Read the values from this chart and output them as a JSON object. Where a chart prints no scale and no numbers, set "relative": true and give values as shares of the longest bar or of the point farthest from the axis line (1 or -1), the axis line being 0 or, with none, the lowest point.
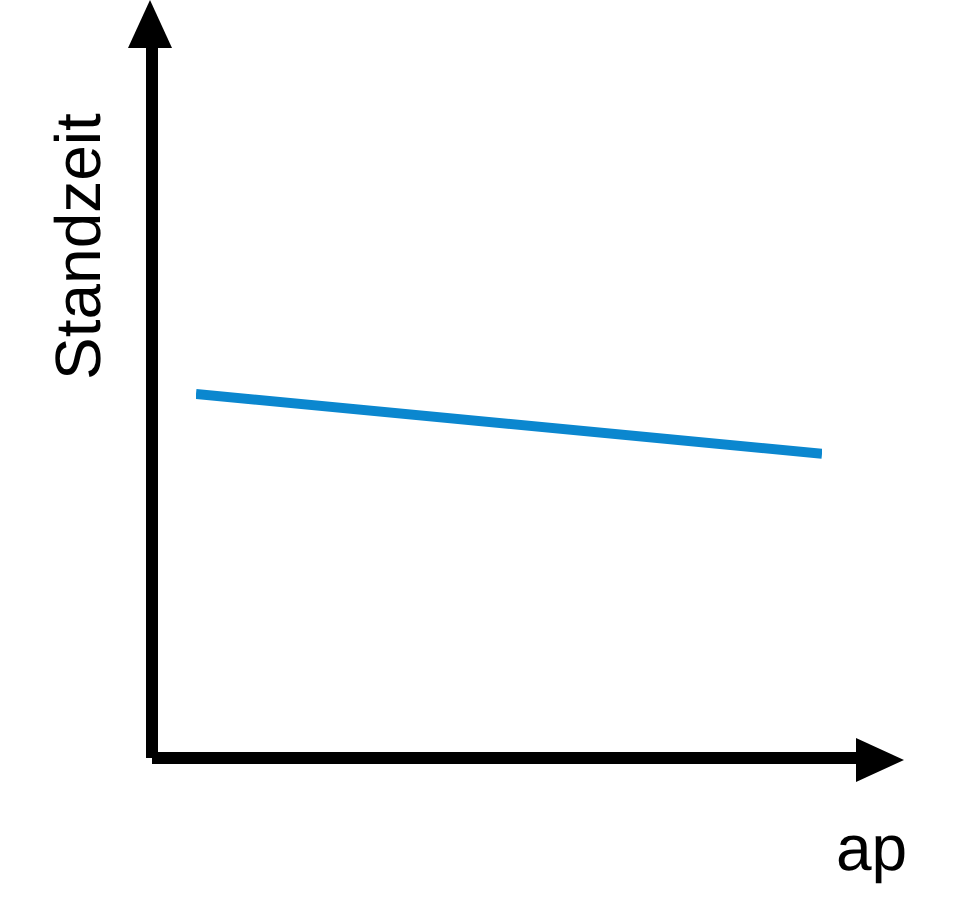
{
  "chart_data": {
    "type": "line",
    "relative": true,
    "xlabel": "ap",
    "ylabel": "Standzeit",
    "categories": [
      null,
      null
    ],
    "series": [
      {
        "color": "#0b87cf",
        "values": [
          1,
          0.836
        ]
      }
    ],
    "grid": false,
    "legend": false,
    "marker": "none",
    "line_style": "solid"
  }
}
